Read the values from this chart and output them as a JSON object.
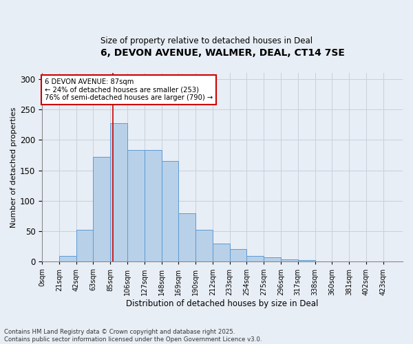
{
  "title_line1": "6, DEVON AVENUE, WALMER, DEAL, CT14 7SE",
  "title_line2": "Size of property relative to detached houses in Deal",
  "xlabel": "Distribution of detached houses by size in Deal",
  "ylabel": "Number of detached properties",
  "bin_labels": [
    "0sqm",
    "21sqm",
    "42sqm",
    "63sqm",
    "85sqm",
    "106sqm",
    "127sqm",
    "148sqm",
    "169sqm",
    "190sqm",
    "212sqm",
    "233sqm",
    "254sqm",
    "275sqm",
    "296sqm",
    "317sqm",
    "338sqm",
    "360sqm",
    "381sqm",
    "402sqm",
    "423sqm"
  ],
  "bar_heights": [
    1,
    10,
    53,
    172,
    228,
    183,
    183,
    165,
    80,
    53,
    30,
    21,
    10,
    7,
    4,
    3,
    1,
    0,
    0,
    0,
    0
  ],
  "bar_color": "#b8d0e8",
  "bar_edge_color": "#5b9bd5",
  "annotation_text": "6 DEVON AVENUE: 87sqm\n← 24% of detached houses are smaller (253)\n76% of semi-detached houses are larger (790) →",
  "annotation_box_color": "#ffffff",
  "annotation_box_edge_color": "#cc0000",
  "vline_x": 87,
  "vline_color": "#cc0000",
  "ylim": [
    0,
    310
  ],
  "xlim": [
    0,
    444
  ],
  "grid_color": "#c8d0dc",
  "footnote": "Contains HM Land Registry data © Crown copyright and database right 2025.\nContains public sector information licensed under the Open Government Licence v3.0.",
  "bg_color": "#e8eef5",
  "bin_width": 21,
  "bin_start": 0,
  "yticks": [
    0,
    50,
    100,
    150,
    200,
    250,
    300
  ]
}
